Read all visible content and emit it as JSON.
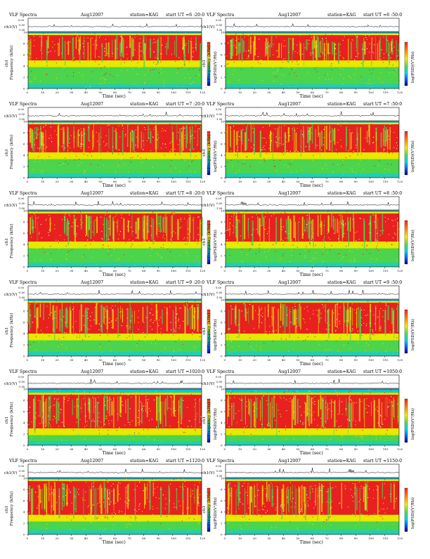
{
  "panel_header": {
    "title": "VLF Spectra",
    "date": "Aug12007",
    "station": "station=KAG",
    "start_prefix": "start  UT"
  },
  "axes": {
    "time_label": "Time (sec)",
    "freq_label": "Frequency (kHz)",
    "freq_label_sub": "ch1",
    "wave_label": "ch1(V)",
    "colorbar_label": "log(PSD)(V²/Hz)",
    "time_ticks": [
      "0",
      "10",
      "20",
      "30",
      "40",
      "50",
      "60",
      "70",
      "80",
      "90",
      "100",
      "110",
      "120"
    ],
    "freq_ticks": [
      "0",
      "2",
      "4",
      "6",
      "8",
      "10"
    ],
    "wave_ticks": [
      "0.00",
      "-0.50",
      "-1.00"
    ],
    "colorbar_ticks": [
      "-",
      "-"
    ]
  },
  "colors": {
    "low": "#00c8ff",
    "mid_green": "#4cd44c",
    "mid_yellow": "#e8e800",
    "high": "#e82020",
    "peak": "#ffffff",
    "colorbar_stops": [
      "#ff2020",
      "#ff9900",
      "#ffee00",
      "#55dd55",
      "#00ddee",
      "#0066ff",
      "#000088"
    ]
  },
  "chart_data": [
    {
      "type": "heatmap",
      "panel": "6:20:0 UT",
      "start_time": "6 :20:0",
      "xlabel": "Time (sec)",
      "ylabel": "Frequency (kHz)",
      "xlim": [
        0,
        120
      ],
      "ylim": [
        0,
        10
      ],
      "band_kHz": [
        5,
        9.5
      ]
    },
    {
      "type": "heatmap",
      "panel": "6:50:0 UT",
      "start_time": "6 :50:0",
      "xlabel": "Time (sec)",
      "ylabel": "Frequency (kHz)",
      "xlim": [
        0,
        120
      ],
      "ylim": [
        0,
        10
      ],
      "band_kHz": [
        5,
        9.5
      ]
    },
    {
      "type": "heatmap",
      "panel": "7:20:0 UT",
      "start_time": "7 :20:0",
      "xlabel": "Time (sec)",
      "ylabel": "Frequency (kHz)",
      "xlim": [
        0,
        120
      ],
      "ylim": [
        0,
        10
      ],
      "band_kHz": [
        4.5,
        9.5
      ]
    },
    {
      "type": "heatmap",
      "panel": "7:50:0 UT",
      "start_time": "7 :50:0",
      "xlabel": "Time (sec)",
      "ylabel": "Frequency (kHz)",
      "xlim": [
        0,
        120
      ],
      "ylim": [
        0,
        10
      ],
      "band_kHz": [
        4.5,
        9.5
      ]
    },
    {
      "type": "heatmap",
      "panel": "8:20:0 UT",
      "start_time": "8 :20:0",
      "xlabel": "Time (sec)",
      "ylabel": "Frequency (kHz)",
      "xlim": [
        0,
        120
      ],
      "ylim": [
        0,
        10
      ],
      "band_kHz": [
        4.5,
        9.5
      ]
    },
    {
      "type": "heatmap",
      "panel": "8:50:0 UT",
      "start_time": "8 :50:0",
      "xlabel": "Time (sec)",
      "ylabel": "Frequency (kHz)",
      "xlim": [
        0,
        120
      ],
      "ylim": [
        0,
        10
      ],
      "band_kHz": [
        4.5,
        9.5
      ]
    },
    {
      "type": "heatmap",
      "panel": "9:20:0 UT",
      "start_time": "9 :20:0",
      "xlabel": "Time (sec)",
      "ylabel": "Frequency (kHz)",
      "xlim": [
        0,
        120
      ],
      "ylim": [
        0,
        10
      ],
      "band_kHz": [
        4,
        9.5
      ]
    },
    {
      "type": "heatmap",
      "panel": "9:50:0 UT",
      "start_time": "9 :50:0",
      "xlabel": "Time (sec)",
      "ylabel": "Frequency (kHz)",
      "xlim": [
        0,
        120
      ],
      "ylim": [
        0,
        10
      ],
      "band_kHz": [
        4,
        9.5
      ]
    },
    {
      "type": "heatmap",
      "panel": "10:20:0 UT",
      "start_time": "1020:0",
      "xlabel": "Time (sec)",
      "ylabel": "Frequency (kHz)",
      "xlim": [
        0,
        120
      ],
      "ylim": [
        0,
        10
      ],
      "band_kHz": [
        3,
        9
      ]
    },
    {
      "type": "heatmap",
      "panel": "10:50:0 UT",
      "start_time": "1050:0",
      "xlabel": "Time (sec)",
      "ylabel": "Frequency (kHz)",
      "xlim": [
        0,
        120
      ],
      "ylim": [
        0,
        10
      ],
      "band_kHz": [
        3,
        9
      ]
    },
    {
      "type": "heatmap",
      "panel": "11:20:0 UT",
      "start_time": "1120:0",
      "xlabel": "Time (sec)",
      "ylabel": "Frequency (kHz)",
      "xlim": [
        0,
        120
      ],
      "ylim": [
        0,
        10
      ],
      "band_kHz": [
        3.5,
        9.5
      ]
    },
    {
      "type": "heatmap",
      "panel": "11:50:0 UT",
      "start_time": "1150:0",
      "xlabel": "Time (sec)",
      "ylabel": "Frequency (kHz)",
      "xlim": [
        0,
        120
      ],
      "ylim": [
        0,
        10
      ],
      "band_kHz": [
        3.5,
        9.5
      ]
    }
  ]
}
